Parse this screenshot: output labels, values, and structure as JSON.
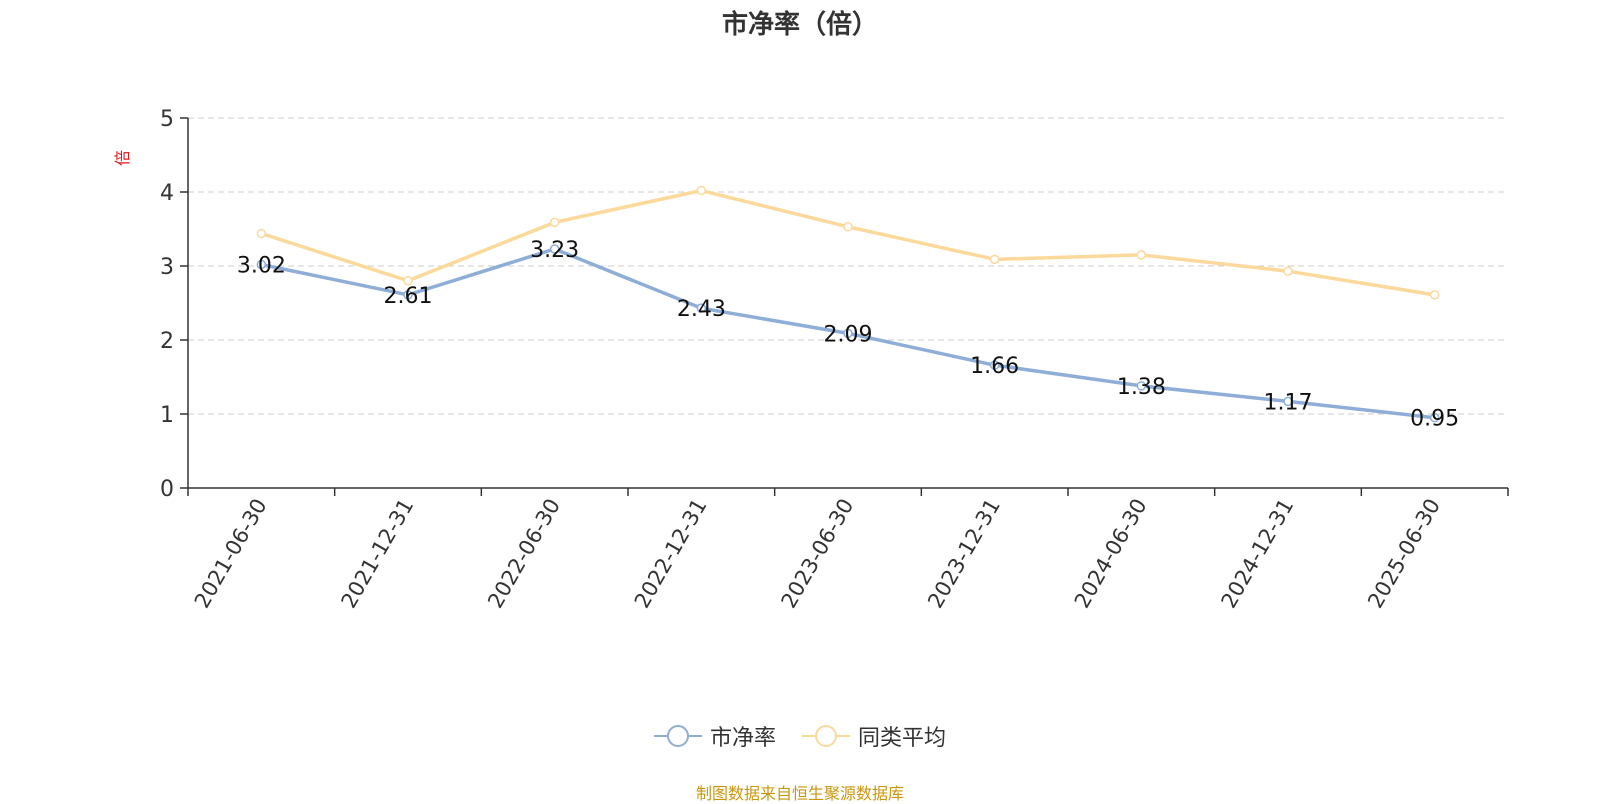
{
  "title": "市净率（倍）",
  "source": "制图数据来自恒生聚源数据库",
  "chart_data": {
    "type": "line",
    "categories": [
      "2021-06-30",
      "2021-12-31",
      "2022-06-30",
      "2022-12-31",
      "2023-06-30",
      "2023-12-31",
      "2024-06-30",
      "2024-12-31",
      "2025-06-30"
    ],
    "series": [
      {
        "name": "市净率",
        "color": "#8eaed8",
        "values": [
          3.02,
          2.61,
          3.23,
          2.43,
          2.09,
          1.66,
          1.38,
          1.17,
          0.95
        ],
        "show_labels": true
      },
      {
        "name": "同类平均",
        "color": "#fbd99b",
        "values": [
          3.44,
          2.8,
          3.59,
          4.02,
          3.53,
          3.09,
          3.15,
          2.93,
          2.61
        ],
        "show_labels": false
      }
    ],
    "ylabel": "倍",
    "ylim": [
      0,
      5
    ],
    "yticks": [
      0,
      1,
      2,
      3,
      4,
      5
    ],
    "grid": true,
    "legend_position": "bottom"
  }
}
